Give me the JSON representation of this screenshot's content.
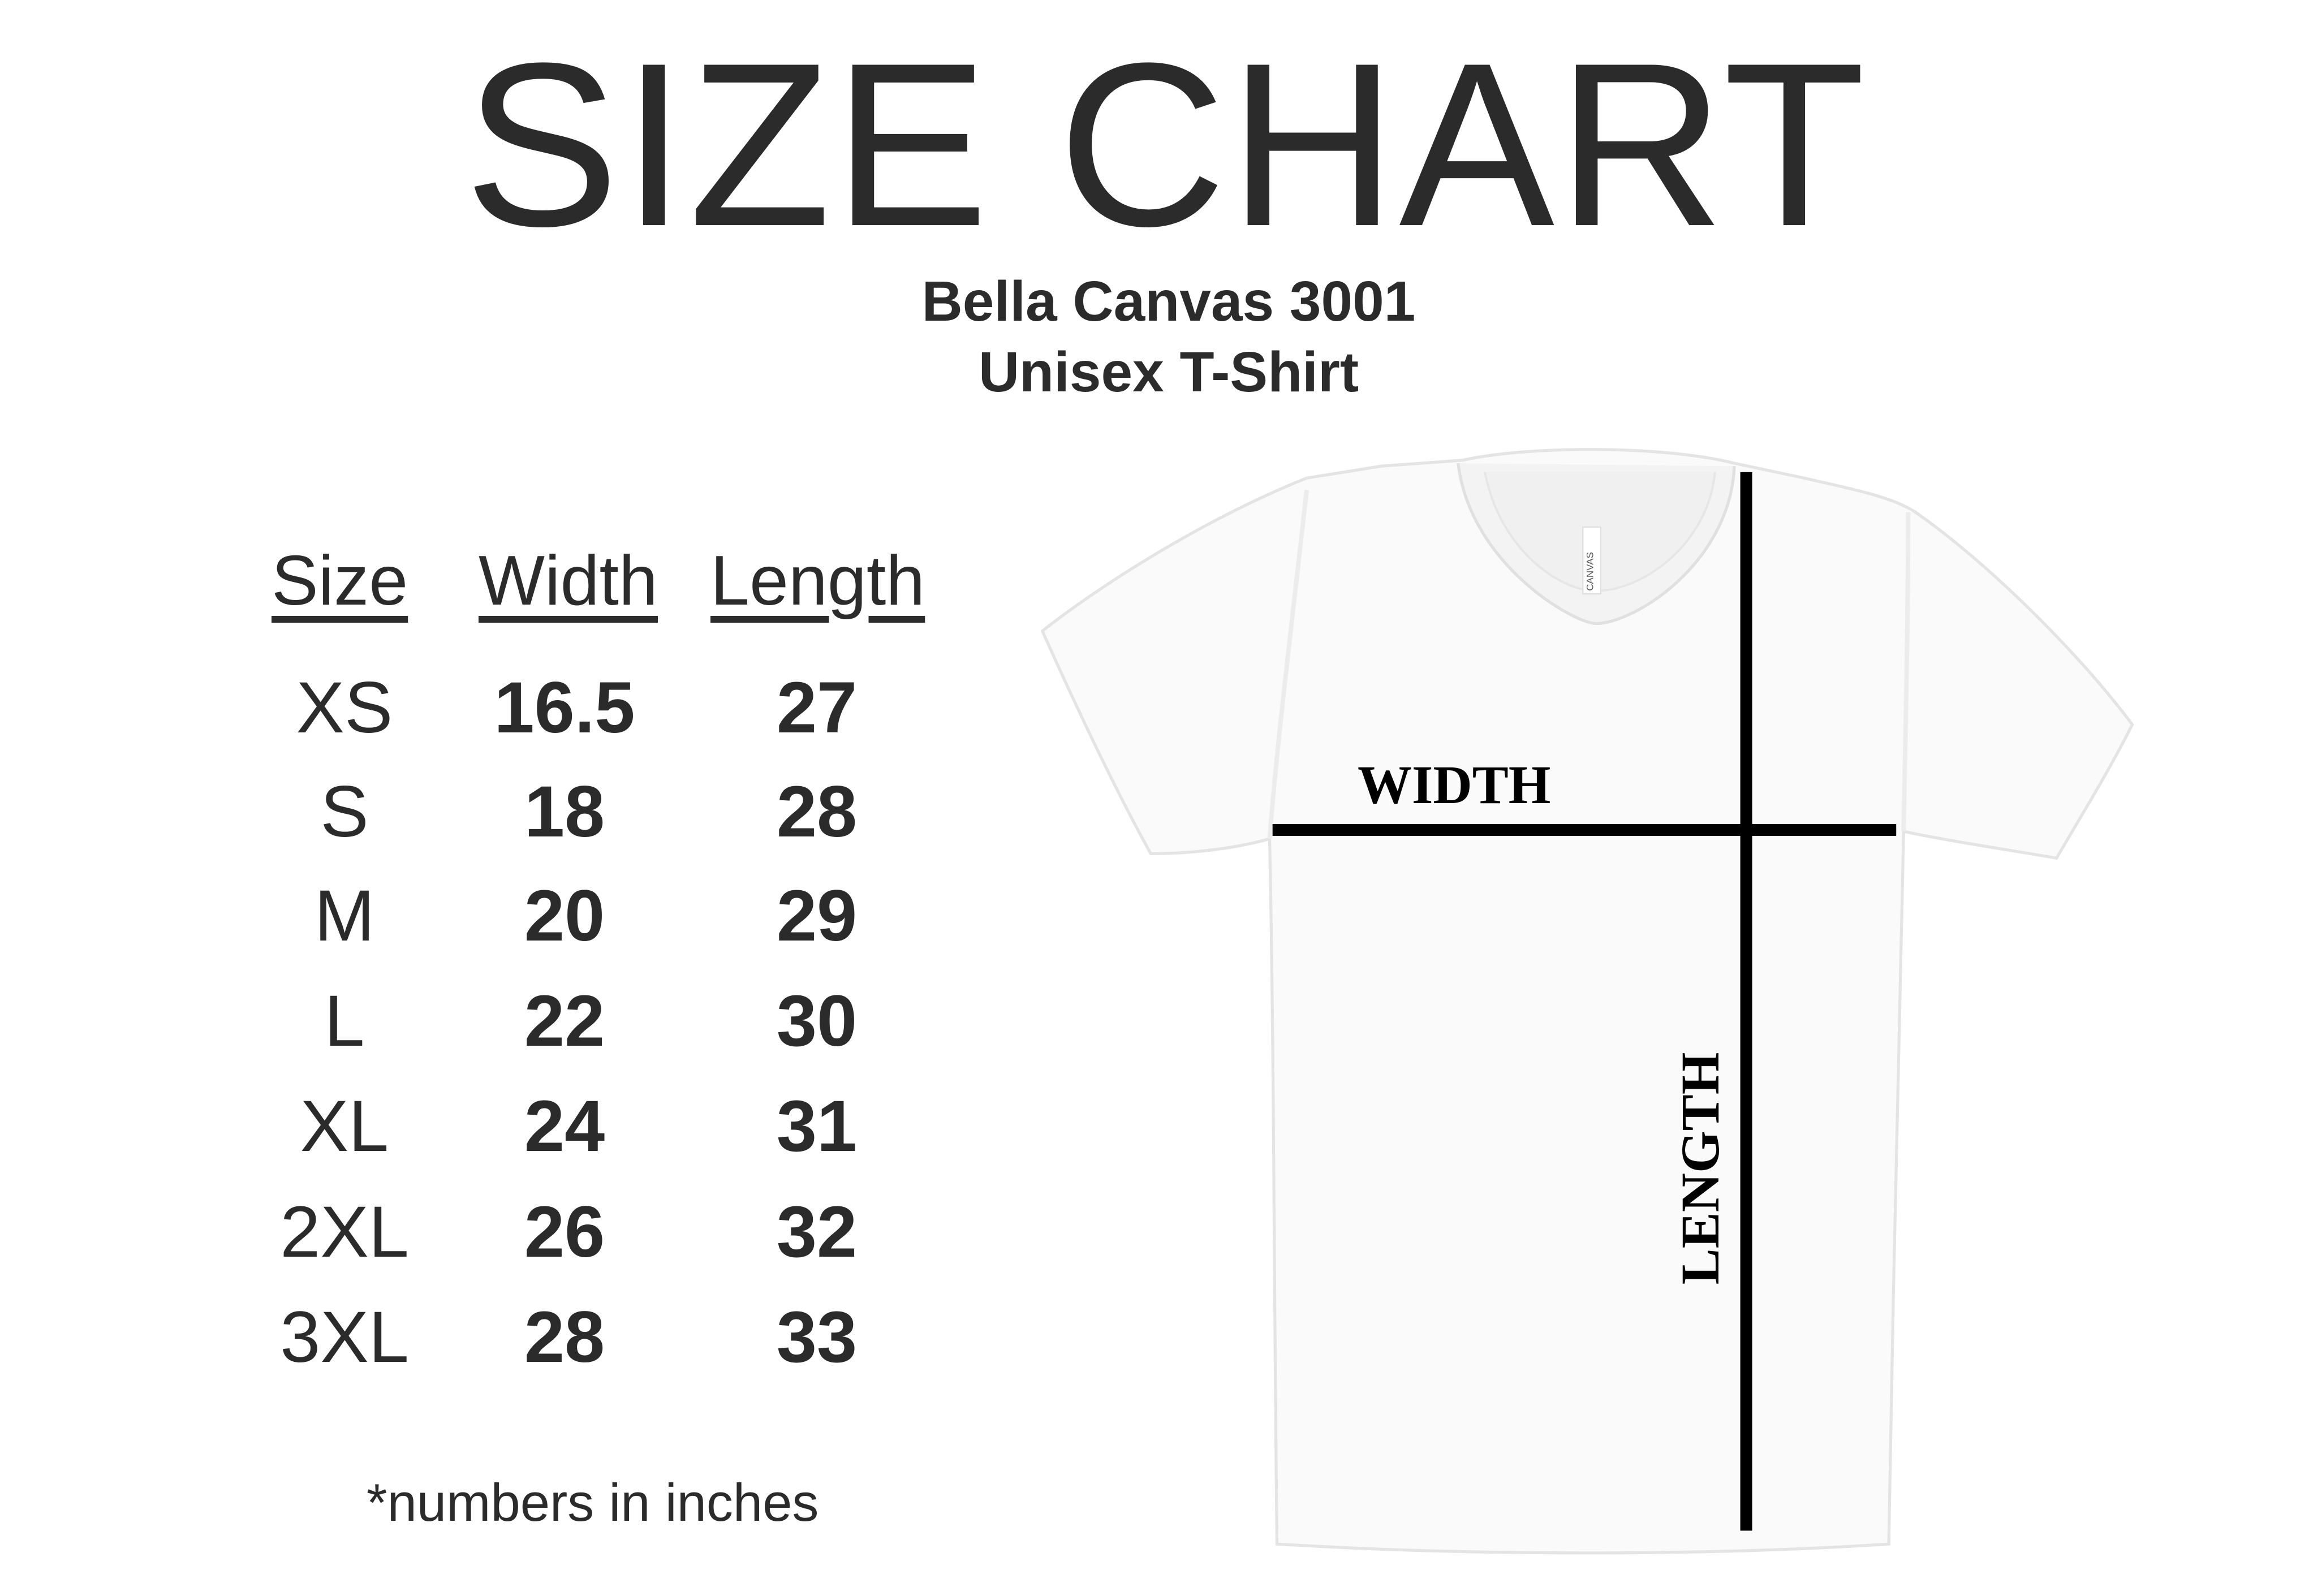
{
  "title": "SIZE CHART",
  "product": {
    "name": "Bella Canvas 3001",
    "type": "Unisex T-Shirt"
  },
  "table": {
    "headers": [
      "Size",
      "Width",
      "Length"
    ],
    "rows": [
      {
        "size": "XS",
        "width": "16.5",
        "length": "27"
      },
      {
        "size": "S",
        "width": "18",
        "length": "28"
      },
      {
        "size": "M",
        "width": "20",
        "length": "29"
      },
      {
        "size": "L",
        "width": "22",
        "length": "30"
      },
      {
        "size": "XL",
        "width": "24",
        "length": "31"
      },
      {
        "size": "2XL",
        "width": "26",
        "length": "32"
      },
      {
        "size": "3XL",
        "width": "28",
        "length": "33"
      }
    ]
  },
  "footnote": "*numbers in inches",
  "diagram": {
    "width_label": "WIDTH",
    "length_label": "LENGTH",
    "tag_text": "CANVAS"
  },
  "colors": {
    "text": "#2b2b2b",
    "lines": "#000000",
    "shirt": "#fafafa"
  }
}
